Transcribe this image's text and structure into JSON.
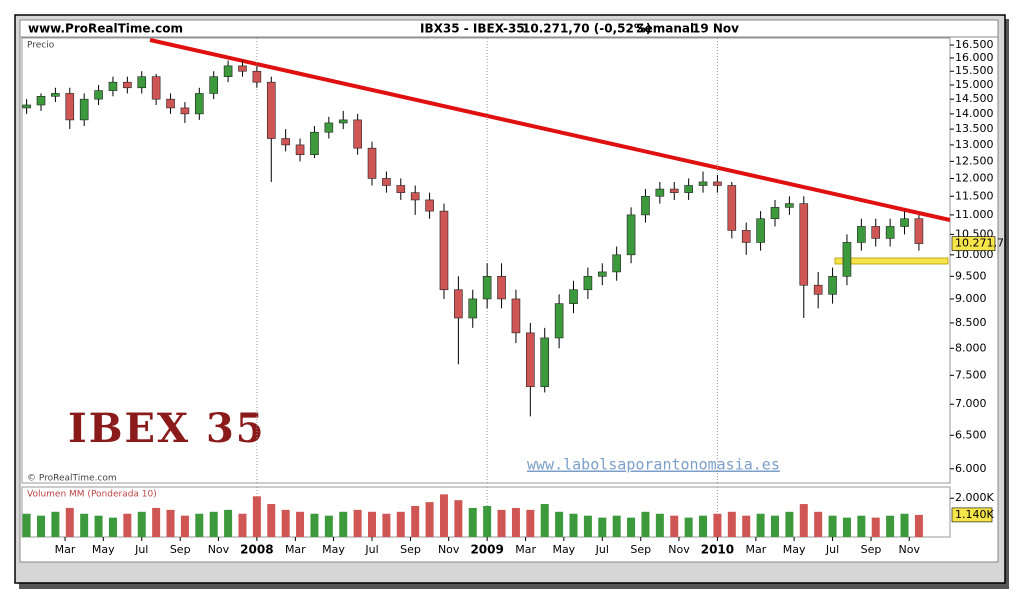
{
  "header": {
    "site": "www.ProRealTime.com",
    "symbol": "IBX35 - IBEX-35",
    "quote": "10.271,70 (-0,52%)",
    "period": "Semanal",
    "date": "19 Nov"
  },
  "chart_data": [
    {
      "type": "candlestick",
      "ylabel": "Precio",
      "annotation": "IBEX 35",
      "credit": "© ProRealTime.com",
      "watermark": "www.labolsaporantonomasia.es",
      "log_scale": true,
      "up_color": "#3c9a3c",
      "down_color": "#d05555",
      "last_label": "10.271,7",
      "x": [
        2007,
        2007.0625,
        2007.125,
        2007.1875,
        2007.25,
        2007.3125,
        2007.375,
        2007.4375,
        2007.5,
        2007.5625,
        2007.625,
        2007.6875,
        2007.75,
        2007.8125,
        2007.875,
        2007.9375,
        2008,
        2008.0625,
        2008.125,
        2008.1875,
        2008.25,
        2008.3125,
        2008.375,
        2008.4375,
        2008.5,
        2008.5625,
        2008.625,
        2008.6875,
        2008.75,
        2008.8125,
        2008.875,
        2008.9375,
        2009,
        2009.0625,
        2009.125,
        2009.1875,
        2009.25,
        2009.3125,
        2009.375,
        2009.4375,
        2009.5,
        2009.5625,
        2009.625,
        2009.6875,
        2009.75,
        2009.8125,
        2009.875,
        2009.9375,
        2010,
        2010.0625,
        2010.125,
        2010.1875,
        2010.25,
        2010.3125,
        2010.375,
        2010.4375,
        2010.5,
        2010.5625,
        2010.625,
        2010.6875,
        2010.75,
        2010.8125,
        2010.875
      ],
      "open": [
        14200,
        14300,
        14600,
        14700,
        13800,
        14500,
        14800,
        15100,
        14900,
        15300,
        14500,
        14200,
        14000,
        14700,
        15300,
        15700,
        15500,
        15100,
        13200,
        13000,
        12700,
        13400,
        13700,
        13800,
        12900,
        12000,
        11800,
        11600,
        11400,
        11100,
        9200,
        8600,
        9000,
        9500,
        9000,
        8300,
        7300,
        8200,
        8900,
        9200,
        9500,
        9600,
        10000,
        11000,
        11500,
        11700,
        11600,
        11800,
        11900,
        11800,
        10600,
        10300,
        10900,
        11200,
        11300,
        9300,
        9100,
        9500,
        10300,
        10700,
        10400,
        10700,
        10900
      ],
      "high": [
        14500,
        14700,
        14900,
        14900,
        14700,
        15000,
        15300,
        15300,
        15500,
        15400,
        14700,
        14400,
        14900,
        15500,
        15900,
        15900,
        15700,
        15300,
        13500,
        13200,
        13600,
        13900,
        14100,
        14000,
        13100,
        12200,
        12000,
        11800,
        11600,
        11300,
        9500,
        9200,
        9800,
        9800,
        9200,
        8500,
        8400,
        9100,
        9400,
        9700,
        9800,
        10200,
        11200,
        11700,
        11900,
        11900,
        12000,
        12200,
        12100,
        11900,
        10800,
        11100,
        11400,
        11500,
        11500,
        9600,
        9700,
        10500,
        10900,
        10900,
        10900,
        11100,
        11000
      ],
      "low": [
        14000,
        14100,
        14400,
        13500,
        13600,
        14300,
        14600,
        14700,
        14700,
        14300,
        14000,
        13700,
        13800,
        14500,
        15100,
        15300,
        14900,
        11900,
        12800,
        12500,
        12600,
        13200,
        13500,
        12700,
        11800,
        11600,
        11400,
        11000,
        10900,
        9000,
        7700,
        8400,
        8800,
        8800,
        8100,
        6800,
        7200,
        8000,
        8700,
        9000,
        9300,
        9400,
        9800,
        10800,
        11300,
        11400,
        11400,
        11600,
        11600,
        10400,
        10000,
        10100,
        10700,
        11000,
        8600,
        8800,
        8900,
        9300,
        10100,
        10200,
        10200,
        10500,
        10100
      ],
      "close": [
        14300,
        14600,
        14700,
        13800,
        14500,
        14800,
        15100,
        14900,
        15300,
        14500,
        14200,
        14000,
        14700,
        15300,
        15700,
        15500,
        15100,
        13200,
        13000,
        12700,
        13400,
        13700,
        13800,
        12900,
        12000,
        11800,
        11600,
        11400,
        11100,
        9200,
        8600,
        9000,
        9500,
        9000,
        8300,
        7300,
        8200,
        8900,
        9200,
        9500,
        9600,
        10000,
        11000,
        11500,
        11700,
        11600,
        11800,
        11900,
        11800,
        10600,
        10300,
        10900,
        11200,
        11300,
        9300,
        9100,
        9500,
        10300,
        10700,
        10400,
        10700,
        10900,
        10271.7
      ],
      "xlim": [
        2006.98,
        2011.01
      ],
      "xticks": [
        {
          "value": 2007.167,
          "label": "Mar"
        },
        {
          "value": 2007.333,
          "label": "May"
        },
        {
          "value": 2007.5,
          "label": "Jul"
        },
        {
          "value": 2007.667,
          "label": "Sep"
        },
        {
          "value": 2007.833,
          "label": "Nov"
        },
        2008,
        {
          "value": 2008.167,
          "label": "Mar"
        },
        {
          "value": 2008.333,
          "label": "May"
        },
        {
          "value": 2008.5,
          "label": "Jul"
        },
        {
          "value": 2008.667,
          "label": "Sep"
        },
        {
          "value": 2008.833,
          "label": "Nov"
        },
        2009,
        {
          "value": 2009.167,
          "label": "Mar"
        },
        {
          "value": 2009.333,
          "label": "May"
        },
        {
          "value": 2009.5,
          "label": "Jul"
        },
        {
          "value": 2009.667,
          "label": "Sep"
        },
        {
          "value": 2009.833,
          "label": "Nov"
        },
        2010,
        {
          "value": 2010.167,
          "label": "Mar"
        },
        {
          "value": 2010.333,
          "label": "May"
        },
        {
          "value": 2010.5,
          "label": "Jul"
        },
        {
          "value": 2010.667,
          "label": "Sep"
        },
        {
          "value": 2010.833,
          "label": "Nov"
        }
      ],
      "ylim": [
        5800,
        16780
      ],
      "yticks": [
        {
          "value": 6000,
          "label": "6.000"
        },
        {
          "value": 6500,
          "label": "6.500"
        },
        {
          "value": 7000,
          "label": "7.000"
        },
        {
          "value": 7500,
          "label": "7.500"
        },
        {
          "value": 8000,
          "label": "8.000"
        },
        {
          "value": 8500,
          "label": "8.500"
        },
        {
          "value": 9000,
          "label": "9.000"
        },
        {
          "value": 9500,
          "label": "9.500"
        },
        {
          "value": 10000,
          "label": "10.000"
        },
        {
          "value": 10500,
          "label": "10.500"
        },
        {
          "value": 11000,
          "label": "11.000"
        },
        {
          "value": 11500,
          "label": "11.500"
        },
        {
          "value": 12000,
          "label": "12.000"
        },
        {
          "value": 12500,
          "label": "12.500"
        },
        {
          "value": 13000,
          "label": "13.000"
        },
        {
          "value": 13500,
          "label": "13.500"
        },
        {
          "value": 14000,
          "label": "14.000"
        },
        {
          "value": 14500,
          "label": "14.500"
        },
        {
          "value": 15000,
          "label": "15.000"
        },
        {
          "value": 15500,
          "label": "15.500"
        },
        {
          "value": 16000,
          "label": "16.000"
        },
        {
          "value": 16500,
          "label": "16.500"
        }
      ]
    },
    {
      "type": "bar",
      "title": "Volumen MM (Ponderada 10)",
      "last_label": "1.140K",
      "values": [
        1200,
        1100,
        1300,
        1500,
        1200,
        1100,
        1000,
        1200,
        1300,
        1500,
        1400,
        1100,
        1200,
        1300,
        1400,
        1200,
        2100,
        1700,
        1400,
        1300,
        1200,
        1100,
        1300,
        1400,
        1300,
        1200,
        1300,
        1600,
        1800,
        2200,
        1900,
        1500,
        1600,
        1400,
        1500,
        1400,
        1700,
        1300,
        1200,
        1100,
        1000,
        1100,
        1000,
        1300,
        1200,
        1100,
        1000,
        1100,
        1200,
        1300,
        1100,
        1200,
        1100,
        1300,
        1700,
        1300,
        1100,
        1000,
        1100,
        1000,
        1100,
        1200,
        1140
      ],
      "ylim": [
        0,
        2580
      ],
      "yticks": [
        {
          "value": 2000,
          "label": "2.000K"
        }
      ]
    }
  ]
}
